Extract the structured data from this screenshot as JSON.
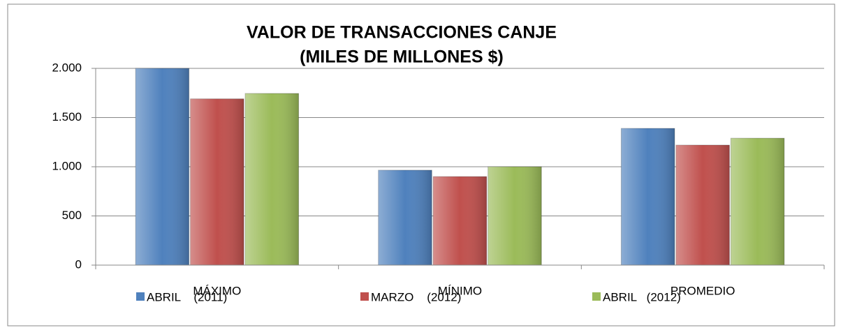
{
  "chart_data": {
    "type": "bar",
    "title": [
      "VALOR DE TRANSACCIONES CANJE",
      "(MILES DE MILLONES $)"
    ],
    "categories": [
      "MÁXIMO",
      "MÍNIMO",
      "PROMEDIO"
    ],
    "series": [
      {
        "name": "ABRIL    (2011)",
        "color": "#4f81bd",
        "values": [
          2000,
          965,
          1390
        ]
      },
      {
        "name": "MARZO    (2012)",
        "color": "#c0504d",
        "values": [
          1690,
          900,
          1220
        ]
      },
      {
        "name": "ABRIL   (2012)",
        "color": "#9bbb59",
        "values": [
          1745,
          1000,
          1290
        ]
      }
    ],
    "ylim": [
      0,
      2000
    ],
    "yticks": [
      0,
      500,
      {
        "value": 1000,
        "label": "1.000"
      },
      {
        "value": 1500,
        "label": "1.500"
      },
      {
        "value": 2000,
        "label": "2.000"
      }
    ],
    "grid": true,
    "legend": "bottom"
  }
}
